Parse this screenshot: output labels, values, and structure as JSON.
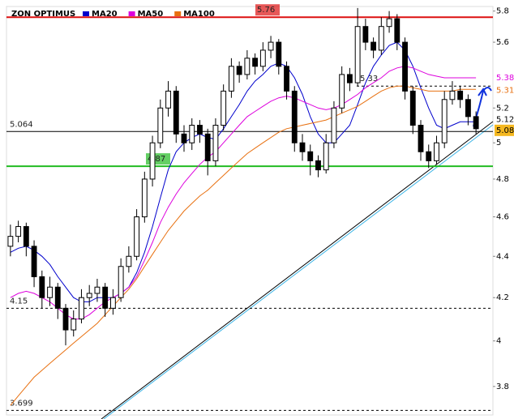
{
  "chart_data": {
    "type": "candlestick",
    "title": "ZON OPTIMUS",
    "log_scale": true,
    "ylim": [
      3.68,
      5.83
    ],
    "yticks": [
      5.8,
      5.6,
      5.2,
      5,
      4.8,
      4.6,
      4.4,
      4.2,
      4,
      3.8
    ],
    "candle_color": "#000000",
    "candles": [
      [
        4.45,
        4.56,
        4.4,
        4.5
      ],
      [
        4.5,
        4.58,
        4.47,
        4.55
      ],
      [
        4.55,
        4.57,
        4.4,
        4.45
      ],
      [
        4.45,
        4.48,
        4.25,
        4.3
      ],
      [
        4.3,
        4.33,
        4.15,
        4.2
      ],
      [
        4.2,
        4.3,
        4.16,
        4.25
      ],
      [
        4.25,
        4.27,
        4.1,
        4.15
      ],
      [
        4.15,
        4.17,
        3.98,
        4.05
      ],
      [
        4.05,
        4.14,
        4.02,
        4.1
      ],
      [
        4.1,
        4.24,
        4.08,
        4.2
      ],
      [
        4.2,
        4.26,
        4.16,
        4.22
      ],
      [
        4.22,
        4.29,
        4.18,
        4.25
      ],
      [
        4.25,
        4.27,
        4.11,
        4.15
      ],
      [
        4.15,
        4.24,
        4.12,
        4.2
      ],
      [
        4.2,
        4.39,
        4.18,
        4.35
      ],
      [
        4.35,
        4.45,
        4.32,
        4.4
      ],
      [
        4.4,
        4.64,
        4.38,
        4.6
      ],
      [
        4.6,
        4.84,
        4.57,
        4.8
      ],
      [
        4.8,
        5.04,
        4.76,
        5.0
      ],
      [
        5.0,
        5.25,
        4.97,
        5.2
      ],
      [
        5.2,
        5.36,
        5.15,
        5.3
      ],
      [
        5.3,
        5.33,
        5.0,
        5.05
      ],
      [
        5.05,
        5.1,
        4.95,
        5.0
      ],
      [
        5.0,
        5.14,
        4.96,
        5.1
      ],
      [
        5.1,
        5.13,
        5.0,
        5.05
      ],
      [
        5.05,
        5.08,
        4.82,
        4.9
      ],
      [
        4.9,
        5.14,
        4.87,
        5.1
      ],
      [
        5.1,
        5.34,
        5.07,
        5.3
      ],
      [
        5.3,
        5.5,
        5.26,
        5.45
      ],
      [
        5.45,
        5.48,
        5.35,
        5.4
      ],
      [
        5.4,
        5.55,
        5.37,
        5.5
      ],
      [
        5.5,
        5.53,
        5.4,
        5.45
      ],
      [
        5.45,
        5.6,
        5.42,
        5.55
      ],
      [
        5.55,
        5.64,
        5.5,
        5.6
      ],
      [
        5.6,
        5.62,
        5.4,
        5.45
      ],
      [
        5.45,
        5.48,
        5.25,
        5.3
      ],
      [
        5.3,
        5.33,
        4.95,
        5.0
      ],
      [
        5.0,
        5.05,
        4.9,
        4.95
      ],
      [
        4.95,
        4.99,
        4.82,
        4.9
      ],
      [
        4.9,
        4.93,
        4.81,
        4.85
      ],
      [
        4.85,
        5.05,
        4.83,
        5.0
      ],
      [
        5.0,
        5.24,
        4.97,
        5.2
      ],
      [
        5.2,
        5.45,
        5.17,
        5.4
      ],
      [
        5.4,
        5.44,
        5.3,
        5.35
      ],
      [
        5.35,
        5.82,
        5.33,
        5.7
      ],
      [
        5.7,
        5.75,
        5.55,
        5.6
      ],
      [
        5.6,
        5.63,
        5.5,
        5.55
      ],
      [
        5.55,
        5.76,
        5.52,
        5.7
      ],
      [
        5.7,
        5.8,
        5.66,
        5.75
      ],
      [
        5.75,
        5.78,
        5.55,
        5.6
      ],
      [
        5.6,
        5.63,
        5.25,
        5.3
      ],
      [
        5.3,
        5.33,
        5.05,
        5.1
      ],
      [
        5.1,
        5.13,
        4.9,
        4.95
      ],
      [
        4.95,
        4.99,
        4.86,
        4.9
      ],
      [
        4.9,
        5.04,
        4.88,
        5.0
      ],
      [
        5.0,
        5.3,
        4.97,
        5.25
      ],
      [
        5.25,
        5.36,
        5.22,
        5.3
      ],
      [
        5.3,
        5.33,
        5.2,
        5.25
      ],
      [
        5.25,
        5.28,
        5.1,
        5.15
      ],
      [
        5.15,
        5.18,
        5.05,
        5.08
      ]
    ],
    "series": [
      {
        "name": "MA20",
        "color": "#0000cc",
        "values": [
          4.42,
          4.44,
          4.45,
          4.43,
          4.4,
          4.36,
          4.3,
          4.25,
          4.2,
          4.18,
          4.18,
          4.2,
          4.2,
          4.2,
          4.22,
          4.25,
          4.32,
          4.42,
          4.55,
          4.7,
          4.85,
          4.95,
          5.0,
          5.03,
          5.05,
          5.03,
          5.02,
          5.08,
          5.15,
          5.22,
          5.3,
          5.36,
          5.4,
          5.45,
          5.47,
          5.45,
          5.38,
          5.28,
          5.15,
          5.05,
          5.0,
          5.0,
          5.05,
          5.1,
          5.22,
          5.35,
          5.45,
          5.52,
          5.58,
          5.6,
          5.55,
          5.45,
          5.32,
          5.2,
          5.1,
          5.08,
          5.1,
          5.12,
          5.12,
          5.12
        ]
      },
      {
        "name": "MA50",
        "color": "#dd00dd",
        "values": [
          4.2,
          4.22,
          4.23,
          4.22,
          4.2,
          4.18,
          4.15,
          4.12,
          4.1,
          4.1,
          4.12,
          4.15,
          4.18,
          4.2,
          4.22,
          4.25,
          4.3,
          4.38,
          4.47,
          4.57,
          4.65,
          4.72,
          4.78,
          4.83,
          4.88,
          4.92,
          4.95,
          5.0,
          5.05,
          5.1,
          5.15,
          5.18,
          5.21,
          5.24,
          5.26,
          5.27,
          5.26,
          5.24,
          5.22,
          5.2,
          5.19,
          5.2,
          5.22,
          5.25,
          5.28,
          5.32,
          5.35,
          5.38,
          5.42,
          5.44,
          5.45,
          5.44,
          5.42,
          5.4,
          5.39,
          5.38,
          5.38,
          5.38,
          5.38,
          5.38
        ]
      },
      {
        "name": "MA100",
        "color": "#e87010",
        "values": [
          3.72,
          3.76,
          3.8,
          3.84,
          3.87,
          3.9,
          3.93,
          3.96,
          3.99,
          4.02,
          4.05,
          4.08,
          4.12,
          4.16,
          4.2,
          4.24,
          4.29,
          4.35,
          4.41,
          4.47,
          4.53,
          4.58,
          4.63,
          4.67,
          4.71,
          4.74,
          4.78,
          4.82,
          4.86,
          4.9,
          4.94,
          4.97,
          5.0,
          5.03,
          5.06,
          5.08,
          5.09,
          5.1,
          5.11,
          5.12,
          5.13,
          5.15,
          5.17,
          5.19,
          5.21,
          5.24,
          5.27,
          5.3,
          5.32,
          5.33,
          5.33,
          5.32,
          5.31,
          5.3,
          5.3,
          5.3,
          5.3,
          5.31,
          5.31,
          5.31
        ]
      }
    ],
    "levels": [
      {
        "value": 5.76,
        "color": "#dd1111",
        "style": "solid",
        "boxed": true
      },
      {
        "value": 5.064,
        "color": "#000000",
        "style": "solid",
        "boxed": false
      },
      {
        "value": 4.87,
        "color": "#22bb22",
        "style": "solid",
        "boxed": true
      },
      {
        "value": 4.15,
        "color": "#000000",
        "style": "dashed",
        "boxed": false
      },
      {
        "value": 3.699,
        "color": "#000000",
        "style": "dashed",
        "boxed": false
      },
      {
        "value": 5.33,
        "color": "#000000",
        "style": "dashed",
        "boxed": false
      }
    ],
    "last_close_color": "#f5b820"
  }
}
